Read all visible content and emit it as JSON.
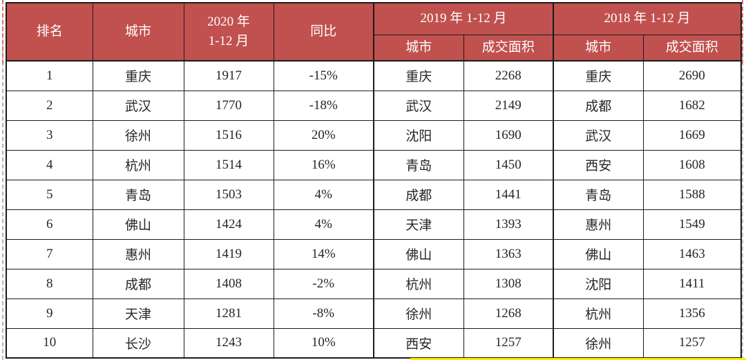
{
  "colors": {
    "header_bg": "#C0514F",
    "header_text": "#FFFFFF",
    "border": "#1A1A1A",
    "yellow_highlight": "#F7EF0A",
    "page_break_dash_grey": "#B5B5B5",
    "page_break_dash_red": "#D4736F"
  },
  "table": {
    "header": {
      "rank": "排名",
      "city": "城市",
      "y2020_line1": "2020 年",
      "y2020_line2": "1-12 月",
      "yoy": "同比",
      "y2019_group": "2019 年 1-12 月",
      "y2018_group": "2018 年 1-12 月",
      "sub_city": "城市",
      "sub_area": "成交面积"
    },
    "rows": [
      {
        "rank": "1",
        "city_2020": "重庆",
        "value_2020": "1917",
        "yoy": "-15%",
        "city_2019": "重庆",
        "value_2019": "2268",
        "city_2018": "重庆",
        "value_2018": "2690"
      },
      {
        "rank": "2",
        "city_2020": "武汉",
        "value_2020": "1770",
        "yoy": "-18%",
        "city_2019": "武汉",
        "value_2019": "2149",
        "city_2018": "成都",
        "value_2018": "1682"
      },
      {
        "rank": "3",
        "city_2020": "徐州",
        "value_2020": "1516",
        "yoy": "20%",
        "city_2019": "沈阳",
        "value_2019": "1690",
        "city_2018": "武汉",
        "value_2018": "1669"
      },
      {
        "rank": "4",
        "city_2020": "杭州",
        "value_2020": "1514",
        "yoy": "16%",
        "city_2019": "青岛",
        "value_2019": "1450",
        "city_2018": "西安",
        "value_2018": "1608"
      },
      {
        "rank": "5",
        "city_2020": "青岛",
        "value_2020": "1503",
        "yoy": "4%",
        "city_2019": "成都",
        "value_2019": "1441",
        "city_2018": "青岛",
        "value_2018": "1588"
      },
      {
        "rank": "6",
        "city_2020": "佛山",
        "value_2020": "1424",
        "yoy": "4%",
        "city_2019": "天津",
        "value_2019": "1393",
        "city_2018": "惠州",
        "value_2018": "1549"
      },
      {
        "rank": "7",
        "city_2020": "惠州",
        "value_2020": "1419",
        "yoy": "14%",
        "city_2019": "佛山",
        "value_2019": "1363",
        "city_2018": "佛山",
        "value_2018": "1463"
      },
      {
        "rank": "8",
        "city_2020": "成都",
        "value_2020": "1408",
        "yoy": "-2%",
        "city_2019": "杭州",
        "value_2019": "1308",
        "city_2018": "沈阳",
        "value_2018": "1411"
      },
      {
        "rank": "9",
        "city_2020": "天津",
        "value_2020": "1281",
        "yoy": "-8%",
        "city_2019": "徐州",
        "value_2019": "1268",
        "city_2018": "杭州",
        "value_2018": "1356"
      },
      {
        "rank": "10",
        "city_2020": "长沙",
        "value_2020": "1243",
        "yoy": "10%",
        "city_2019": "西安",
        "value_2019": "1257",
        "city_2018": "徐州",
        "value_2018": "1257"
      }
    ]
  },
  "chart_data": {
    "type": "table",
    "header_groups": [
      {
        "label": "排名"
      },
      {
        "label": "城市"
      },
      {
        "label": "2020年1-12月"
      },
      {
        "label": "同比"
      },
      {
        "label": "2019年1-12月",
        "children": [
          "城市",
          "成交面积"
        ]
      },
      {
        "label": "2018年1-12月",
        "children": [
          "城市",
          "成交面积"
        ]
      }
    ],
    "rows": [
      [
        1,
        "重庆",
        1917,
        "-15%",
        "重庆",
        2268,
        "重庆",
        2690
      ],
      [
        2,
        "武汉",
        1770,
        "-18%",
        "武汉",
        2149,
        "成都",
        1682
      ],
      [
        3,
        "徐州",
        1516,
        "20%",
        "沈阳",
        1690,
        "武汉",
        1669
      ],
      [
        4,
        "杭州",
        1514,
        "16%",
        "青岛",
        1450,
        "西安",
        1608
      ],
      [
        5,
        "青岛",
        1503,
        "4%",
        "成都",
        1441,
        "青岛",
        1588
      ],
      [
        6,
        "佛山",
        1424,
        "4%",
        "天津",
        1393,
        "惠州",
        1549
      ],
      [
        7,
        "惠州",
        1419,
        "14%",
        "佛山",
        1363,
        "佛山",
        1463
      ],
      [
        8,
        "成都",
        1408,
        "-2%",
        "杭州",
        1308,
        "沈阳",
        1411
      ],
      [
        9,
        "天津",
        1281,
        "-8%",
        "徐州",
        1268,
        "杭州",
        1356
      ],
      [
        10,
        "长沙",
        1243,
        "10%",
        "西安",
        1257,
        "徐州",
        1257
      ]
    ]
  }
}
